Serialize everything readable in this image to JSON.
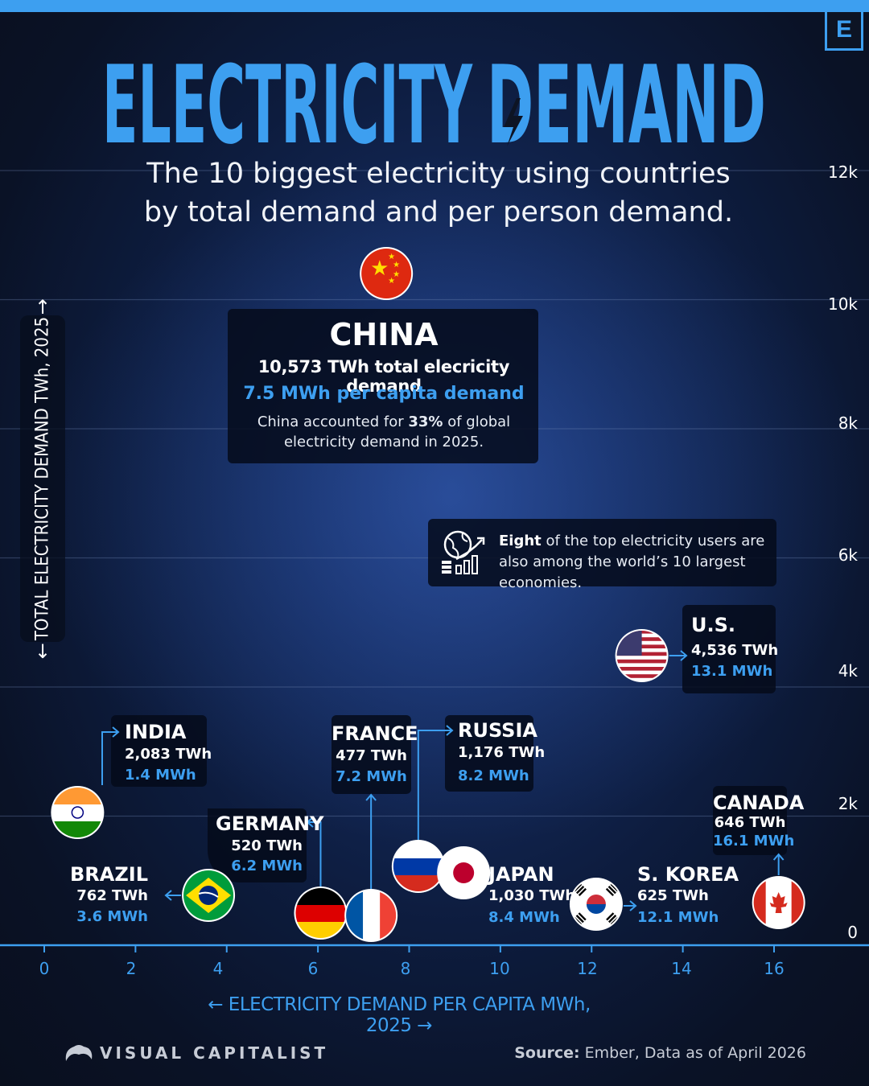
{
  "header": {
    "title": "ELECTRICITY DEMAND",
    "title_part1": "ELECTRICITY",
    "title_part2": "DEMAND",
    "subtitle_line1": "The 10 biggest electricity using countries",
    "subtitle_line2": "by total demand and per person demand.",
    "brand_mark": "E"
  },
  "callouts": {
    "china": {
      "name": "CHINA",
      "line1": "10,573 TWh total elecricity demand",
      "line2": "7.5 MWh per capita demand",
      "note_pre": "China accounted for ",
      "note_bold": "33%",
      "note_post": " of global electricity demand in 2025."
    },
    "eight": {
      "bold": "Eight",
      "text": " of the top electricity users are also among the world’s 10 largest economies."
    }
  },
  "labels": {
    "us": {
      "name": "U.S.",
      "twh": "4,536 TWh",
      "mwh": "13.1 MWh"
    },
    "india": {
      "name": "INDIA",
      "twh": "2,083 TWh",
      "mwh": "1.4 MWh"
    },
    "france": {
      "name": "FRANCE",
      "twh": "477 TWh",
      "mwh": "7.2 MWh"
    },
    "russia": {
      "name": "RUSSIA",
      "twh": "1,176 TWh",
      "mwh": "8.2 MWh"
    },
    "germany": {
      "name": "GERMANY",
      "twh": "520 TWh",
      "mwh": "6.2 MWh"
    },
    "brazil": {
      "name": "BRAZIL",
      "twh": "762 TWh",
      "mwh": "3.6 MWh"
    },
    "japan": {
      "name": "JAPAN",
      "twh": "1,030 TWh",
      "mwh": "8.4 MWh"
    },
    "skorea": {
      "name": "S. KOREA",
      "twh": "625 TWh",
      "mwh": "12.1 MWh"
    },
    "canada": {
      "name": "CANADA",
      "twh": "646 TWh",
      "mwh": "16.1 MWh"
    }
  },
  "chart_data": {
    "type": "scatter",
    "xlabel": "ELECTRICITY DEMAND PER CAPITA MWh, 2025",
    "ylabel": "TOTAL ELECTRICITY DEMAND TWh, 2025",
    "xlim": [
      0,
      18
    ],
    "ylim": [
      0,
      12000
    ],
    "xticks": [
      0,
      2,
      4,
      6,
      8,
      10,
      12,
      14,
      16
    ],
    "yticks": [
      0,
      2000,
      4000,
      6000,
      8000,
      10000,
      12000
    ],
    "ytick_labels": [
      "0",
      "2k",
      "4k",
      "6k",
      "8k",
      "10k",
      "12k"
    ],
    "grid": true,
    "points": [
      {
        "country": "China",
        "per_capita_mwh": 7.5,
        "total_twh": 10573
      },
      {
        "country": "U.S.",
        "per_capita_mwh": 13.1,
        "total_twh": 4536
      },
      {
        "country": "India",
        "per_capita_mwh": 1.4,
        "total_twh": 2083
      },
      {
        "country": "Russia",
        "per_capita_mwh": 8.2,
        "total_twh": 1176
      },
      {
        "country": "Japan",
        "per_capita_mwh": 8.4,
        "total_twh": 1030
      },
      {
        "country": "Brazil",
        "per_capita_mwh": 3.6,
        "total_twh": 762
      },
      {
        "country": "Canada",
        "per_capita_mwh": 16.1,
        "total_twh": 646
      },
      {
        "country": "S. Korea",
        "per_capita_mwh": 12.1,
        "total_twh": 625
      },
      {
        "country": "Germany",
        "per_capita_mwh": 6.2,
        "total_twh": 520
      },
      {
        "country": "France",
        "per_capita_mwh": 7.2,
        "total_twh": 477
      }
    ]
  },
  "footer": {
    "brand": "VISUAL CAPITALIST",
    "source_label": "Source:",
    "source_text": "Ember, Data as of April 2026"
  }
}
